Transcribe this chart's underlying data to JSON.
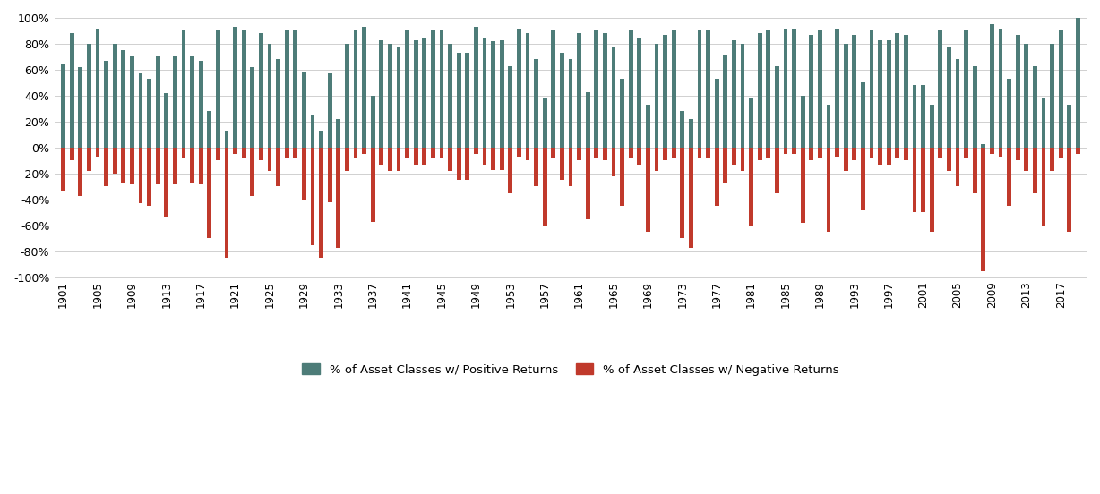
{
  "years": [
    1901,
    1902,
    1903,
    1904,
    1905,
    1906,
    1907,
    1908,
    1909,
    1910,
    1911,
    1912,
    1913,
    1914,
    1915,
    1916,
    1917,
    1918,
    1919,
    1920,
    1921,
    1922,
    1923,
    1924,
    1925,
    1926,
    1927,
    1928,
    1929,
    1930,
    1931,
    1932,
    1933,
    1934,
    1935,
    1936,
    1937,
    1938,
    1939,
    1940,
    1941,
    1942,
    1943,
    1944,
    1945,
    1946,
    1947,
    1948,
    1949,
    1950,
    1951,
    1952,
    1953,
    1954,
    1955,
    1956,
    1957,
    1958,
    1959,
    1960,
    1961,
    1962,
    1963,
    1964,
    1965,
    1966,
    1967,
    1968,
    1969,
    1970,
    1971,
    1972,
    1973,
    1974,
    1975,
    1976,
    1977,
    1978,
    1979,
    1980,
    1981,
    1982,
    1983,
    1984,
    1985,
    1986,
    1987,
    1988,
    1989,
    1990,
    1991,
    1992,
    1993,
    1994,
    1995,
    1996,
    1997,
    1998,
    1999,
    2000,
    2001,
    2002,
    2003,
    2004,
    2005,
    2006,
    2007,
    2008,
    2009,
    2010,
    2011,
    2012,
    2013,
    2014,
    2015,
    2016,
    2017,
    2018,
    2019
  ],
  "positive": [
    65,
    88,
    62,
    80,
    92,
    67,
    80,
    75,
    70,
    57,
    53,
    70,
    42,
    70,
    90,
    70,
    67,
    28,
    90,
    13,
    93,
    90,
    62,
    88,
    80,
    68,
    90,
    90,
    58,
    25,
    13,
    57,
    22,
    80,
    90,
    93,
    40,
    83,
    80,
    78,
    90,
    83,
    85,
    90,
    90,
    80,
    73,
    73,
    93,
    85,
    82,
    83,
    63,
    92,
    88,
    68,
    38,
    90,
    73,
    68,
    88,
    43,
    90,
    88,
    77,
    53,
    90,
    85,
    33,
    80,
    87,
    90,
    28,
    22,
    90,
    90,
    53,
    72,
    83,
    80,
    38,
    88,
    90,
    63,
    92,
    92,
    40,
    87,
    90,
    33,
    92,
    80,
    87,
    50,
    90,
    83,
    83,
    88,
    87,
    48,
    48,
    33,
    90,
    78,
    68,
    90,
    63,
    3,
    95,
    92,
    53,
    87,
    80,
    63,
    38,
    80,
    90,
    33,
    100
  ],
  "negative": [
    -33,
    -10,
    -37,
    -18,
    -7,
    -30,
    -20,
    -27,
    -28,
    -43,
    -45,
    -28,
    -53,
    -28,
    -8,
    -27,
    -28,
    -70,
    -10,
    -85,
    -5,
    -8,
    -37,
    -10,
    -18,
    -30,
    -8,
    -8,
    -40,
    -75,
    -85,
    -42,
    -77,
    -18,
    -8,
    -5,
    -57,
    -13,
    -18,
    -18,
    -8,
    -13,
    -13,
    -8,
    -8,
    -18,
    -25,
    -25,
    -5,
    -13,
    -17,
    -17,
    -35,
    -7,
    -10,
    -30,
    -60,
    -8,
    -25,
    -30,
    -10,
    -55,
    -8,
    -10,
    -22,
    -45,
    -8,
    -13,
    -65,
    -18,
    -10,
    -8,
    -70,
    -77,
    -8,
    -8,
    -45,
    -27,
    -13,
    -18,
    -60,
    -10,
    -8,
    -35,
    -5,
    -5,
    -58,
    -10,
    -8,
    -65,
    -7,
    -18,
    -10,
    -48,
    -8,
    -13,
    -13,
    -8,
    -10,
    -50,
    -50,
    -65,
    -8,
    -18,
    -30,
    -8,
    -35,
    -95,
    -5,
    -7,
    -45,
    -10,
    -18,
    -35,
    -60,
    -18,
    -8,
    -65,
    -5
  ],
  "positive_color": "#4d7c78",
  "negative_color": "#c0392b",
  "background_color": "#ffffff",
  "ylim_min": -100,
  "ylim_max": 100,
  "ylabel_ticks": [
    -100,
    -80,
    -60,
    -40,
    -20,
    0,
    20,
    40,
    60,
    80,
    100
  ],
  "tick_labels": [
    "-100%",
    "-80%",
    "-60%",
    "-40%",
    "-20%",
    "0%",
    "20%",
    "40%",
    "60%",
    "80%",
    "100%"
  ],
  "xtick_years": [
    1901,
    1905,
    1909,
    1913,
    1917,
    1921,
    1925,
    1929,
    1933,
    1937,
    1941,
    1945,
    1949,
    1953,
    1957,
    1961,
    1965,
    1969,
    1973,
    1977,
    1981,
    1985,
    1989,
    1993,
    1997,
    2001,
    2005,
    2009,
    2013,
    2017
  ],
  "legend_positive": "% of Asset Classes w/ Positive Returns",
  "legend_negative": "% of Asset Classes w/ Negative Returns",
  "bar_width": 0.5
}
